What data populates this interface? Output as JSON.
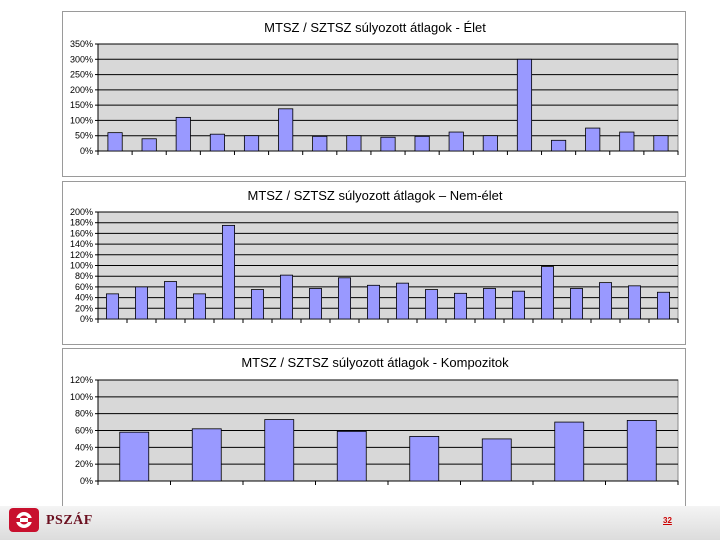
{
  "chart_data": [
    {
      "type": "bar",
      "title": "MTSZ / SZTSZ súlyozott átlagok - Élet",
      "ylim": [
        0,
        350
      ],
      "ytick_values": [
        0,
        50,
        100,
        150,
        200,
        250,
        300,
        350
      ],
      "ytick_labels": [
        "0%",
        "50%",
        "100%",
        "150%",
        "200%",
        "250%",
        "300%",
        "350%"
      ],
      "values": [
        60,
        40,
        110,
        55,
        50,
        138,
        48,
        50,
        45,
        48,
        62,
        50,
        300,
        35,
        75,
        62,
        50
      ],
      "bar_color": "#9999ff",
      "plot_background": "#d8d8d8",
      "grid": true
    },
    {
      "type": "bar",
      "title": "MTSZ / SZTSZ súlyozott átlagok – Nem-élet",
      "ylim": [
        0,
        200
      ],
      "ytick_values": [
        0,
        20,
        40,
        60,
        80,
        100,
        120,
        140,
        160,
        180,
        200
      ],
      "ytick_labels": [
        "0%",
        "20%",
        "40%",
        "60%",
        "80%",
        "100%",
        "120%",
        "140%",
        "160%",
        "180%",
        "200%"
      ],
      "values": [
        47,
        60,
        70,
        47,
        175,
        55,
        82,
        57,
        77,
        63,
        67,
        55,
        48,
        57,
        52,
        98,
        57,
        68,
        62,
        50
      ],
      "bar_color": "#9999ff",
      "plot_background": "#d8d8d8",
      "grid": true
    },
    {
      "type": "bar",
      "title": "MTSZ / SZTSZ súlyozott átlagok - Kompozitok",
      "ylim": [
        0,
        120
      ],
      "ytick_values": [
        0,
        20,
        40,
        60,
        80,
        100,
        120
      ],
      "ytick_labels": [
        "0%",
        "20%",
        "40%",
        "60%",
        "80%",
        "100%",
        "120%"
      ],
      "values": [
        58,
        62,
        73,
        59,
        53,
        50,
        70,
        72
      ],
      "bar_color": "#9999ff",
      "plot_background": "#d8d8d8",
      "grid": true
    }
  ],
  "footer": {
    "logo_text": "PSZÁF",
    "page_number": "32",
    "logo_color": "#c8102e"
  }
}
